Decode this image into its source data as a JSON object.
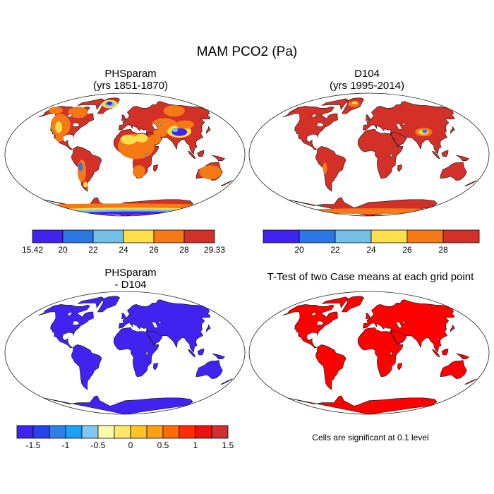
{
  "title": "MAM PCO2 (Pa)",
  "panels": [
    {
      "title1": "PHSparam",
      "title2": "(yrs 1851-1870)"
    },
    {
      "title1": "D104",
      "title2": "(yrs 1995-2014)"
    },
    {
      "title1": "PHSparam",
      "title2": "- D104"
    },
    {
      "title1": "T-Test of two Case means at each grid point",
      "title2": ""
    }
  ],
  "significance_note": "Cells are significant at 0.1 level",
  "colors": {
    "land_mean": "#d33128",
    "land_diff": "#4123f0",
    "land_sig": "#ff0000",
    "mean_palette": [
      "#4123f0",
      "#2b77e6",
      "#73bfe8",
      "#fcdf4a",
      "#f57a16",
      "#d33128"
    ],
    "diff_palette": [
      "#4123f0",
      "#2644e8",
      "#2f80e6",
      "#1ba1f5",
      "#80c8ef",
      "#fffbaa",
      "#ffe66b",
      "#ffc321",
      "#ff9f14",
      "#ff6a05",
      "#ff2c00",
      "#e8120f",
      "#cf3030"
    ]
  },
  "chart_data": [
    {
      "type": "heatmap",
      "panel": "mean_case",
      "colorbar": {
        "min_label": "15.42",
        "max_label": "29.33",
        "ticks": [
          "20",
          "22",
          "24",
          "26",
          "28"
        ],
        "colors": [
          "#4123f0",
          "#2b77e6",
          "#73bfe8",
          "#fcdf4a",
          "#f57a16",
          "#d33128"
        ]
      },
      "dominant_value_range": [
        28,
        29.33
      ],
      "low_value_regions": [
        "Tibetan Plateau",
        "Sahara",
        "Greenland",
        "Antarctica",
        "Andes",
        "Rocky Mountains"
      ]
    },
    {
      "type": "heatmap",
      "panel": "mean_ref",
      "colorbar": {
        "ticks": [
          "20",
          "22",
          "24",
          "26",
          "28"
        ],
        "colors": [
          "#4123f0",
          "#2b77e6",
          "#73bfe8",
          "#fcdf4a",
          "#f57a16",
          "#d33128"
        ]
      },
      "dominant_value_range": [
        28,
        30
      ],
      "low_value_regions": [
        "Tibetan Plateau",
        "Greenland",
        "Antarctica"
      ]
    },
    {
      "type": "heatmap",
      "panel": "difference",
      "colorbar": {
        "ticks": [
          "-1.5",
          "-1",
          "-0.5",
          "0",
          "0.5",
          "1",
          "1.5"
        ],
        "colors": [
          "#4123f0",
          "#2644e8",
          "#2f80e6",
          "#1ba1f5",
          "#80c8ef",
          "#fffbaa",
          "#ffe66b",
          "#ffc321",
          "#ff9f14",
          "#ff6a05",
          "#ff2c00",
          "#e8120f",
          "#cf3030"
        ]
      },
      "dominant_value": "< -1.5"
    },
    {
      "type": "heatmap",
      "panel": "significance",
      "significant_land": "all"
    }
  ]
}
